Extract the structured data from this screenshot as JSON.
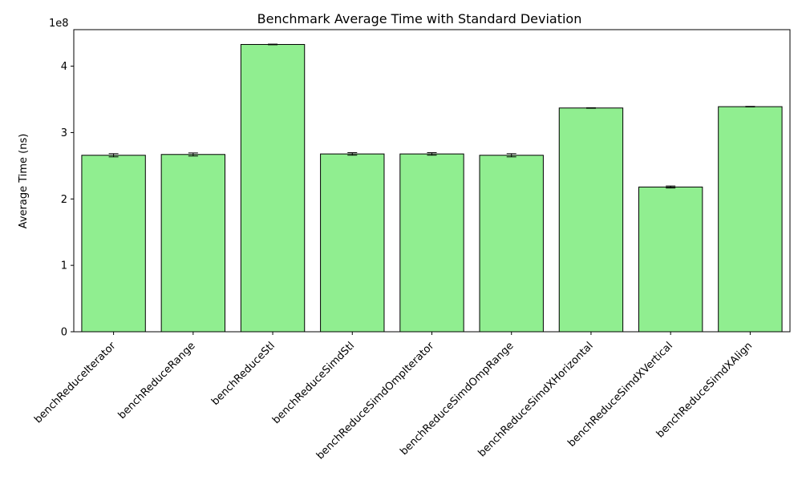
{
  "chart_data": {
    "type": "bar",
    "title": "Benchmark Average Time with Standard Deviation",
    "xlabel": "",
    "ylabel": "Average Time (ns)",
    "y_scale_label": "1e8",
    "ylim": [
      0,
      455000000
    ],
    "yticks": [
      0,
      100000000,
      200000000,
      300000000,
      400000000
    ],
    "ytick_labels": [
      "0",
      "1",
      "2",
      "3",
      "4"
    ],
    "categories": [
      "benchReduceIterator",
      "benchReduceRange",
      "benchReduceStl",
      "benchReduceSimdStl",
      "benchReduceSimdOmpIterator",
      "benchReduceSimdOmpRange",
      "benchReduceSimdXHorizontal",
      "benchReduceSimdXVertical",
      "benchReduceSimdXAlign"
    ],
    "values": [
      265800000,
      267000000,
      432700000,
      267800000,
      267800000,
      265800000,
      337000000,
      218000000,
      339000000
    ],
    "std": [
      2400000,
      2300000,
      500000,
      1900000,
      1900000,
      2400000,
      400000,
      1500000,
      400000
    ],
    "bar_color": "#90ee90",
    "edge_color": "#000000",
    "grid": false
  }
}
